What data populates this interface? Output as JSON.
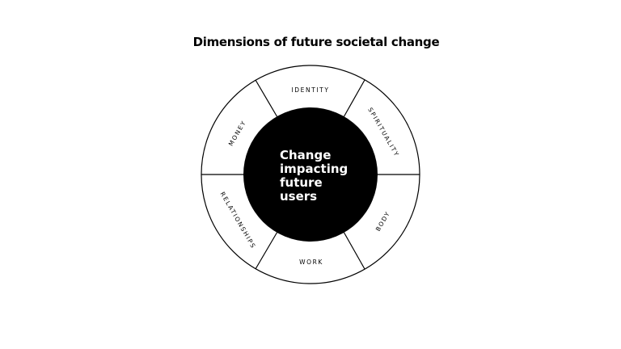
{
  "title": "Dimensions of future societal change",
  "center": {
    "lines": [
      "Change",
      "impacting",
      "future",
      "users"
    ]
  },
  "segments": [
    {
      "label": "IDENTITY"
    },
    {
      "label": "SPIRITUALITY"
    },
    {
      "label": "BODY"
    },
    {
      "label": "WORK"
    },
    {
      "label": "RELATIONSHIPS"
    },
    {
      "label": "MONEY"
    }
  ],
  "colors": {
    "background": "#ffffff",
    "hub_fill": "#000000",
    "hub_text": "#ffffff",
    "stroke": "#000000"
  }
}
